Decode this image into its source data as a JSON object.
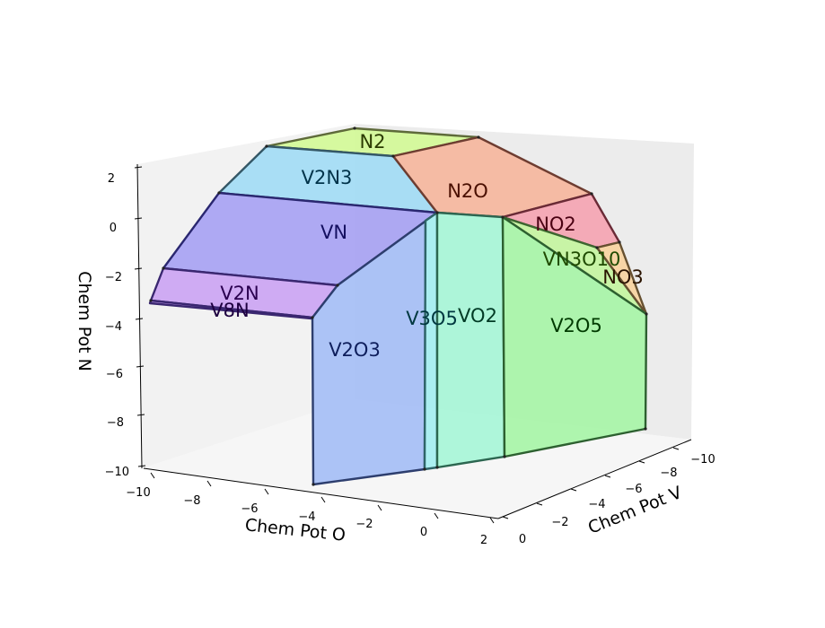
{
  "chart_data": {
    "type": "chemical-potential-diagram-3d",
    "title": "",
    "axes": {
      "x": {
        "label": "Chem Pot O",
        "ticks": [
          "−10",
          "−8",
          "−6",
          "−4",
          "−2",
          "0",
          "2"
        ]
      },
      "y": {
        "label": "Chem Pot V",
        "ticks": [
          "0",
          "−2",
          "−4",
          "−6",
          "−8",
          "−10"
        ]
      },
      "z": {
        "label": "Chem Pot N",
        "ticks": [
          "2",
          "0",
          "−2",
          "−4",
          "−6",
          "−8",
          "−10"
        ]
      }
    },
    "regions": [
      {
        "name": "N2",
        "color": "#d4f99a"
      },
      {
        "name": "V2N3",
        "color": "#a4dcf4"
      },
      {
        "name": "N2O",
        "color": "#f5b8a0"
      },
      {
        "name": "VN",
        "color": "#aaa4f2"
      },
      {
        "name": "NO2",
        "color": "#f4a6b4"
      },
      {
        "name": "VN3O10",
        "color": "#c6f4a2"
      },
      {
        "name": "NO3",
        "color": "#f8d4a2"
      },
      {
        "name": "V2N",
        "color": "#cca6f2"
      },
      {
        "name": "V8N",
        "color": "#c89cf2"
      },
      {
        "name": "V2O3",
        "color": "#a8c0f6"
      },
      {
        "name": "V3O5",
        "color": "#a6eef0"
      },
      {
        "name": "VO2",
        "color": "#aaf6d8"
      },
      {
        "name": "V2O5",
        "color": "#aaf4aa"
      }
    ]
  }
}
